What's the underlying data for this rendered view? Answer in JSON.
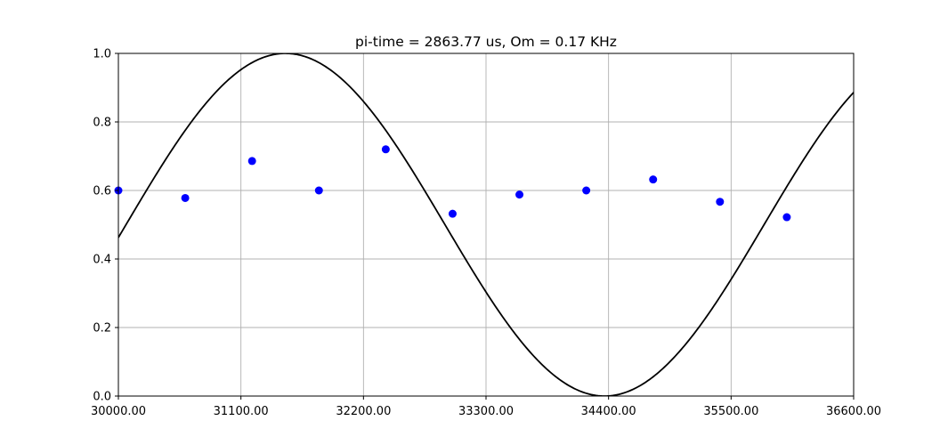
{
  "chart_data": {
    "type": "scatter",
    "title": "pi-time = 2863.77 us, Om = 0.17 KHz",
    "xlabel": "",
    "ylabel": "",
    "xlim": [
      30000,
      36600
    ],
    "ylim": [
      0,
      1
    ],
    "grid": true,
    "x_ticks": [
      30000,
      31100,
      32200,
      33300,
      34400,
      35500,
      36600
    ],
    "x_tick_labels": [
      "30000.00",
      "31100.00",
      "32200.00",
      "33300.00",
      "34400.00",
      "35500.00",
      "36600.00"
    ],
    "y_ticks": [
      0,
      0.2,
      0.4,
      0.6,
      0.8,
      1.0
    ],
    "y_tick_labels": [
      "0.0",
      "0.2",
      "0.4",
      "0.6",
      "0.8",
      "1.0"
    ],
    "series": [
      {
        "kind": "scatter",
        "color": "#0000ff",
        "x": [
          30000,
          30600,
          31200,
          31800,
          32400,
          33000,
          33600,
          34200,
          34800,
          35400,
          36000
        ],
        "y": [
          0.6,
          0.578,
          0.686,
          0.6,
          0.72,
          0.532,
          0.588,
          0.6,
          0.632,
          0.567,
          0.522
        ]
      },
      {
        "kind": "line",
        "color": "#000000",
        "function": "0.5 + 0.5*cos(pi*(x - 31500)/2863.77)",
        "pi_time_us": 2863.77,
        "peak_x": 31500
      }
    ]
  }
}
